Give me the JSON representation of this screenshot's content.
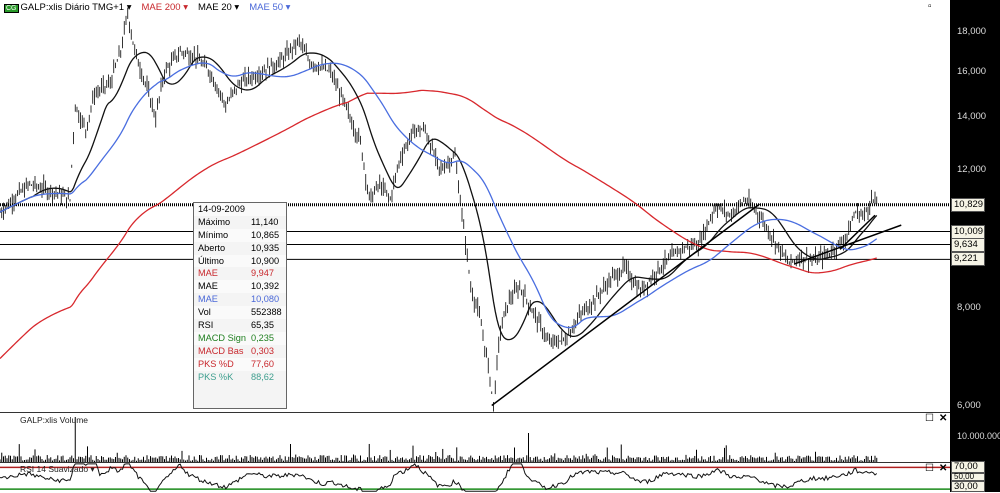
{
  "header": {
    "badge": "CG",
    "symbol": "GALP:xlis Diário TMG+1",
    "indicators": [
      {
        "label": "MAE 200",
        "color": "#c8282d"
      },
      {
        "label": "MAE 20",
        "color": "#000000"
      },
      {
        "label": "MAE 50",
        "color": "#4a68d8"
      }
    ]
  },
  "tooltip": {
    "date": "14-09-2009",
    "rows": [
      {
        "k": "Máximo",
        "v": "11,140",
        "c": ""
      },
      {
        "k": "Mínimo",
        "v": "10,865",
        "c": ""
      },
      {
        "k": "Aberto",
        "v": "10,935",
        "c": ""
      },
      {
        "k": "Último",
        "v": "10,900",
        "c": ""
      },
      {
        "k": "MAE",
        "v": "9,947",
        "c": "red"
      },
      {
        "k": "MAE",
        "v": "10,392",
        "c": ""
      },
      {
        "k": "MAE",
        "v": "10,080",
        "c": "blue"
      },
      {
        "k": "Vol",
        "v": "552388",
        "c": ""
      },
      {
        "k": "RSI",
        "v": "65,35",
        "c": ""
      },
      {
        "k": "MACD Sign",
        "v": "0,235",
        "c": "green"
      },
      {
        "k": "MACD Bas",
        "v": "0,303",
        "c": "red"
      },
      {
        "k": "PKS %D",
        "v": "77,60",
        "c": "red"
      },
      {
        "k": "PKS %K",
        "v": "88,62",
        "c": "teal"
      }
    ]
  },
  "volume_pane": {
    "title": "GALP:xlis Volume",
    "tick": "10.000.000"
  },
  "rsi_pane": {
    "title": "RSI 14 Suavizado",
    "ticks": [
      "70,00",
      "50,00",
      "30,00"
    ]
  },
  "chart_data": {
    "type": "line",
    "scale": "log",
    "ylim": [
      6,
      19.5
    ],
    "yticks": [
      "18,000",
      "16,000",
      "14,000",
      "12,000",
      "8,000",
      "6,000"
    ],
    "ytick_values": [
      18,
      16,
      14,
      12,
      8,
      6
    ],
    "price_labels": [
      {
        "v": 10.829,
        "t": "10,829",
        "style": "dotted"
      },
      {
        "v": 10.009,
        "t": "10,009"
      },
      {
        "v": 9.634,
        "t": "9,634"
      },
      {
        "v": 9.221,
        "t": "9,221"
      }
    ],
    "close": [
      [
        0,
        10.6
      ],
      [
        11,
        11.2
      ],
      [
        17,
        11.5
      ],
      [
        34,
        11.2
      ],
      [
        40,
        11.0
      ],
      [
        43,
        14.5
      ],
      [
        49,
        13.5
      ],
      [
        54,
        15
      ],
      [
        63,
        15.5
      ],
      [
        69,
        17
      ],
      [
        73,
        19
      ],
      [
        77,
        17
      ],
      [
        83,
        15.5
      ],
      [
        89,
        14
      ],
      [
        94,
        16
      ],
      [
        103,
        17
      ],
      [
        111,
        16.8
      ],
      [
        120,
        16
      ],
      [
        129,
        14.5
      ],
      [
        137,
        15.5
      ],
      [
        149,
        16
      ],
      [
        160,
        16.5
      ],
      [
        171,
        17.5
      ],
      [
        177,
        16.5
      ],
      [
        189,
        16
      ],
      [
        197,
        14.5
      ],
      [
        206,
        13
      ],
      [
        211,
        11
      ],
      [
        217,
        11.5
      ],
      [
        223,
        11
      ],
      [
        229,
        12.5
      ],
      [
        237,
        13.5
      ],
      [
        243,
        13.5
      ],
      [
        251,
        12
      ],
      [
        260,
        12.5
      ],
      [
        264,
        10.5
      ],
      [
        269,
        8.5
      ],
      [
        274,
        7.8
      ],
      [
        280,
        6.5
      ],
      [
        282,
        6.0
      ],
      [
        286,
        7.5
      ],
      [
        291,
        8.2
      ],
      [
        297,
        8.5
      ],
      [
        306,
        7.8
      ],
      [
        314,
        7.2
      ],
      [
        323,
        7.3
      ],
      [
        331,
        7.8
      ],
      [
        340,
        8.2
      ],
      [
        349,
        8.7
      ],
      [
        357,
        9.0
      ],
      [
        366,
        8.4
      ],
      [
        377,
        9.0
      ],
      [
        389,
        9.5
      ],
      [
        400,
        9.7
      ],
      [
        409,
        10.8
      ],
      [
        417,
        10.5
      ],
      [
        426,
        11.0
      ],
      [
        434,
        10.5
      ],
      [
        443,
        9.7
      ],
      [
        451,
        9.1
      ],
      [
        457,
        9.3
      ],
      [
        466,
        9.2
      ],
      [
        474,
        9.4
      ],
      [
        483,
        9.8
      ],
      [
        489,
        10.6
      ],
      [
        494,
        10.5
      ],
      [
        498,
        11.0
      ],
      [
        501,
        10.9
      ]
    ],
    "moving_averages": [
      {
        "name": "MAE 200",
        "period": 200,
        "color": "#d8282d"
      },
      {
        "name": "MAE 20",
        "period": 20,
        "color": "#111111"
      },
      {
        "name": "MAE 50",
        "period": 50,
        "color": "#4a6ee0"
      }
    ],
    "trendlines": [
      [
        [
          281,
          6.0
        ],
        [
          434,
          10.85
        ]
      ],
      [
        [
          454,
          9.1
        ],
        [
          515,
          10.2
        ]
      ],
      [
        [
          480,
          9.5
        ],
        [
          500,
          10.5
        ]
      ]
    ],
    "rsi_levels": [
      70,
      50,
      30
    ]
  }
}
